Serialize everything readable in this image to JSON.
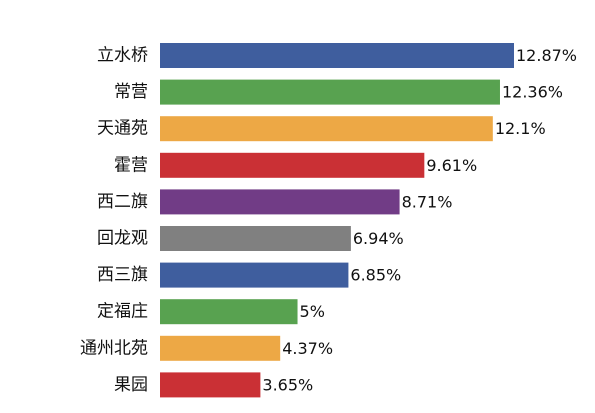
{
  "chart_data": {
    "type": "bar",
    "orientation": "horizontal",
    "categories": [
      "立水桥",
      "常营",
      "天通苑",
      "霍营",
      "西二旗",
      "回龙观",
      "西三旗",
      "定福庄",
      "通州北苑",
      "果园"
    ],
    "values": [
      12.87,
      12.36,
      12.1,
      9.61,
      8.71,
      6.94,
      6.85,
      5,
      4.37,
      3.65
    ],
    "value_labels": [
      "12.87%",
      "12.36%",
      "12.1%",
      "9.61%",
      "8.71%",
      "6.94%",
      "6.85%",
      "5%",
      "4.37%",
      "3.65%"
    ],
    "colors": [
      "#3F5E9E",
      "#58A250",
      "#EDA845",
      "#CA3035",
      "#713C86",
      "#808080",
      "#3F5E9E",
      "#58A250",
      "#EDA845",
      "#CA3035"
    ],
    "unit": "%",
    "xlim": [
      0,
      12.87
    ],
    "grid": false,
    "legend": "none",
    "title": "",
    "xlabel": "",
    "ylabel": ""
  }
}
